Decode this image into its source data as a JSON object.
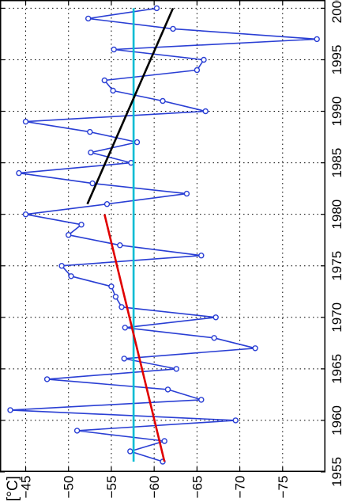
{
  "chart_data": {
    "type": "line",
    "orientation": "rotated-90-clockwise",
    "unit_label": "[°C]",
    "xlim": [
      1955,
      2000.8
    ],
    "ylim": [
      -42,
      -80
    ],
    "x_ticks": [
      1955,
      1960,
      1965,
      1970,
      1975,
      1980,
      1985,
      1990,
      1995,
      2000
    ],
    "y_ticks": [
      -45,
      -50,
      -55,
      -60,
      -65,
      -70,
      -75
    ],
    "grid": true,
    "series": [
      {
        "style": "line-with-circle-markers",
        "color": "#2a3fd4",
        "points": [
          [
            1956,
            -61.0
          ],
          [
            1957,
            -57.2
          ],
          [
            1958,
            -61.2
          ],
          [
            1959,
            -51.0
          ],
          [
            1960,
            -69.5
          ],
          [
            1961,
            -43.2
          ],
          [
            1962,
            -65.5
          ],
          [
            1963,
            -61.6
          ],
          [
            1964,
            -47.5
          ],
          [
            1965,
            -62.6
          ],
          [
            1966,
            -56.5
          ],
          [
            1967,
            -71.8
          ],
          [
            1968,
            -67.0
          ],
          [
            1969,
            -56.6
          ],
          [
            1970,
            -67.2
          ],
          [
            1971,
            -56.2
          ],
          [
            1972,
            -55.5
          ],
          [
            1973,
            -55.0
          ],
          [
            1974,
            -50.3
          ],
          [
            1975,
            -49.2
          ],
          [
            1976,
            -65.5
          ],
          [
            1977,
            -56.0
          ],
          [
            1978,
            -50.0
          ],
          [
            1979,
            -51.5
          ],
          [
            1980,
            -45.0
          ],
          [
            1981,
            -54.5
          ],
          [
            1982,
            -63.8
          ],
          [
            1983,
            -52.8
          ],
          [
            1984,
            -44.2
          ],
          [
            1985,
            -57.3
          ],
          [
            1986,
            -52.6
          ],
          [
            1987,
            -58.0
          ],
          [
            1988,
            -52.5
          ],
          [
            1989,
            -45.0
          ],
          [
            1990,
            -66.0
          ],
          [
            1991,
            -61.0
          ],
          [
            1992,
            -55.2
          ],
          [
            1993,
            -54.2
          ],
          [
            1994,
            -65.0
          ],
          [
            1995,
            -65.8
          ],
          [
            1996,
            -55.3
          ],
          [
            1997,
            -79.0
          ],
          [
            1998,
            -62.2
          ],
          [
            1999,
            -52.3
          ],
          [
            2000,
            -60.3
          ]
        ]
      },
      {
        "style": "line",
        "color": "#00bcd4",
        "points": [
          [
            1956,
            -57.6
          ],
          [
            2000,
            -57.6
          ]
        ]
      },
      {
        "style": "line",
        "color": "#e00000",
        "points": [
          [
            1956,
            -61.2
          ],
          [
            1980,
            -54.2
          ]
        ]
      },
      {
        "style": "line",
        "color": "#000000",
        "points": [
          [
            1981,
            -52.2
          ],
          [
            2000,
            -62.2
          ]
        ]
      }
    ]
  }
}
